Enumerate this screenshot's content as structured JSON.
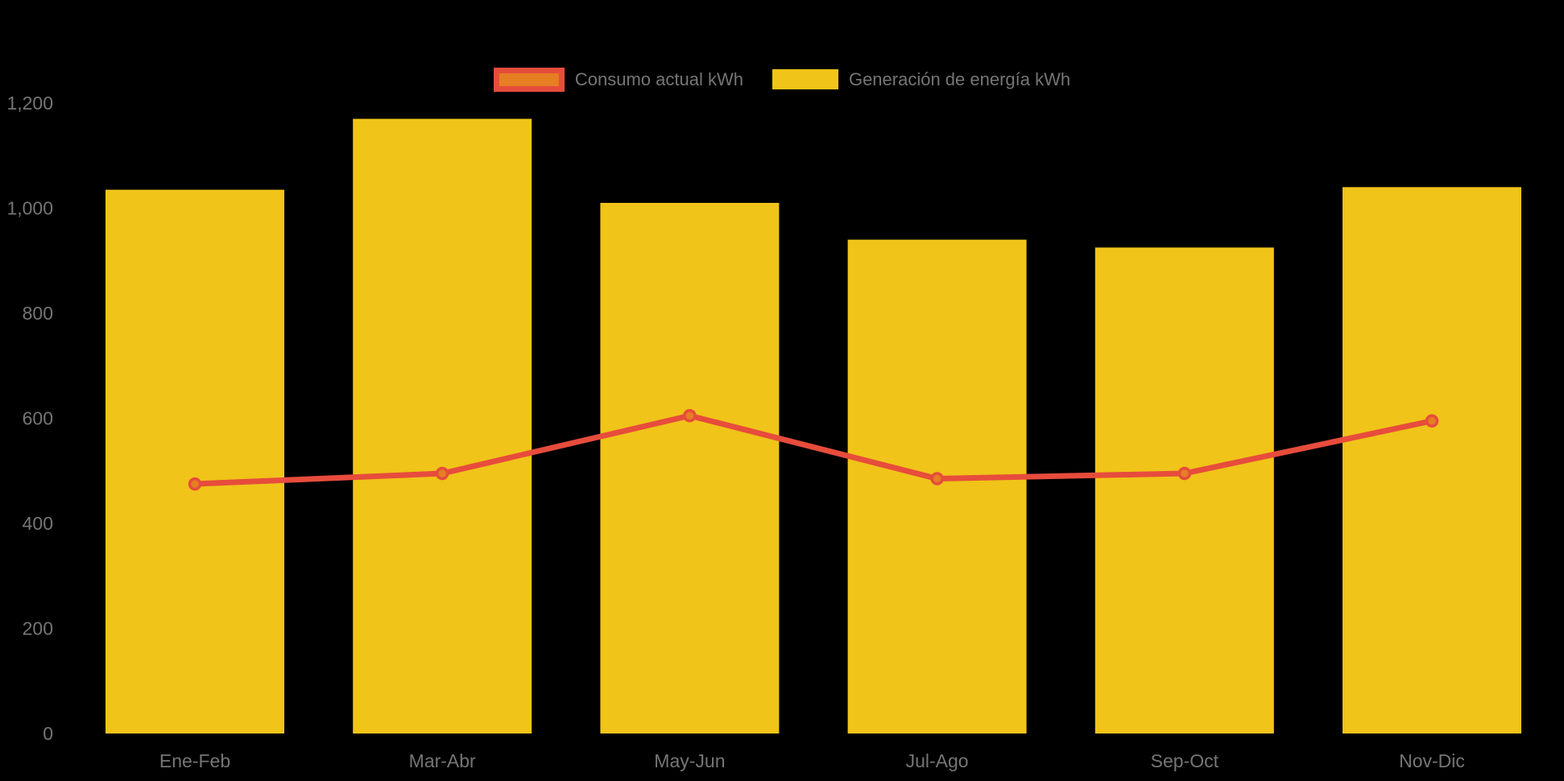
{
  "legend": {
    "items": [
      {
        "label": "Consumo actual kWh",
        "type": "line"
      },
      {
        "label": "Generación de energía kWh",
        "type": "bar"
      }
    ]
  },
  "colors": {
    "background": "#000000",
    "axis_text": "#757575",
    "bar_yellow": "#F0C419",
    "line_red": "#E74C3C",
    "marker_orange": "#E67E22"
  },
  "chart_data": {
    "type": "bar",
    "title": "",
    "xlabel": "",
    "ylabel": "",
    "categories": [
      "Ene-Feb",
      "Mar-Abr",
      "May-Jun",
      "Jul-Ago",
      "Sep-Oct",
      "Nov-Dic"
    ],
    "series": [
      {
        "name": "Consumo actual kWh",
        "type": "line",
        "color": "#E74C3C",
        "marker_color": "#E67E22",
        "values": [
          475,
          495,
          605,
          485,
          495,
          595
        ]
      },
      {
        "name": "Generación de energía kWh",
        "type": "bar",
        "color": "#F0C419",
        "values": [
          1035,
          1170,
          1010,
          940,
          925,
          1040
        ]
      }
    ],
    "ylim": [
      0,
      1200
    ],
    "yticks": [
      0,
      200,
      400,
      600,
      800,
      1000,
      1200
    ],
    "ytick_labels": [
      "0",
      "200",
      "400",
      "600",
      "800",
      "1,000",
      "1,200"
    ],
    "grid": false,
    "legend_position": "top-center"
  }
}
